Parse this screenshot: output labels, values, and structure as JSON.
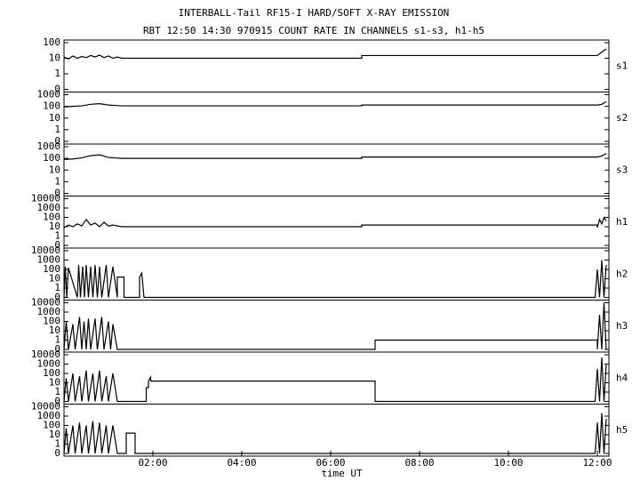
{
  "title": "INTERBALL-Tail RF15-I HARD/SOFT X-RAY EMISSION",
  "subtitle": "RBT 12:50 14:30 970915  COUNT RATE IN CHANNELS s1-s3, h1-h5",
  "chart_data": [
    {
      "type": "line",
      "ylabel": "s1",
      "yscale": "log",
      "color": "#000000",
      "xlim": [
        0,
        12.26
      ],
      "ylim": [
        0,
        100
      ],
      "yticks": [
        100,
        10,
        1,
        0
      ],
      "x": [
        0,
        0.1,
        0.2,
        0.3,
        0.4,
        0.5,
        0.6,
        0.7,
        0.8,
        0.9,
        1.0,
        1.1,
        1.2,
        1.3,
        6.7,
        6.7,
        12.0,
        12.1,
        12.2
      ],
      "values": [
        12,
        9,
        14,
        10,
        13,
        11,
        15,
        12,
        16,
        11,
        14,
        10,
        12,
        10,
        10,
        15,
        15,
        25,
        40
      ]
    },
    {
      "type": "line",
      "ylabel": "s2",
      "yscale": "log",
      "color": "#000000",
      "xlim": [
        0,
        12.26
      ],
      "ylim": [
        0,
        1000
      ],
      "yticks": [
        1000,
        100,
        10,
        1,
        0
      ],
      "x": [
        0,
        0.2,
        0.4,
        0.6,
        0.8,
        1.0,
        1.3,
        6.7,
        6.7,
        12.0,
        12.1,
        12.2
      ],
      "values": [
        90,
        100,
        110,
        150,
        170,
        130,
        110,
        110,
        130,
        130,
        150,
        250
      ]
    },
    {
      "type": "line",
      "ylabel": "s3",
      "yscale": "log",
      "color": "#000000",
      "xlim": [
        0,
        12.26
      ],
      "ylim": [
        0,
        1000
      ],
      "yticks": [
        1000,
        100,
        10,
        1,
        0
      ],
      "x": [
        0,
        0.2,
        0.4,
        0.6,
        0.8,
        1.0,
        1.3,
        6.7,
        6.7,
        12.0,
        12.1,
        12.2
      ],
      "values": [
        80,
        90,
        110,
        170,
        200,
        120,
        100,
        100,
        130,
        130,
        160,
        260
      ]
    },
    {
      "type": "line",
      "ylabel": "h1",
      "yscale": "log",
      "color": "#000000",
      "xlim": [
        0,
        12.26
      ],
      "ylim": [
        0,
        10000
      ],
      "yticks": [
        10000,
        1000,
        100,
        10,
        1,
        0
      ],
      "x": [
        0,
        0.1,
        0.2,
        0.3,
        0.4,
        0.5,
        0.6,
        0.7,
        0.8,
        0.9,
        1.0,
        1.1,
        1.3,
        6.7,
        6.7,
        12.0,
        12.0,
        12.05,
        12.1,
        12.15,
        12.2
      ],
      "values": [
        8,
        15,
        10,
        20,
        12,
        60,
        15,
        25,
        10,
        30,
        12,
        15,
        10,
        10,
        15,
        15,
        8,
        60,
        20,
        100,
        40
      ]
    },
    {
      "type": "line",
      "ylabel": "h2",
      "yscale": "log",
      "color": "#000000",
      "xlim": [
        0,
        12.26
      ],
      "ylim": [
        0,
        10000
      ],
      "yticks": [
        10000,
        1000,
        100,
        10,
        1,
        0
      ],
      "x": [
        0,
        0.03,
        0.06,
        0.1,
        0.3,
        0.33,
        0.37,
        0.42,
        0.46,
        0.5,
        0.55,
        0.6,
        0.65,
        0.7,
        0.75,
        0.8,
        0.85,
        0.95,
        1.0,
        1.1,
        1.2,
        1.2,
        1.35,
        1.35,
        1.7,
        1.7,
        1.75,
        1.8,
        11.95,
        12.0,
        12.05,
        12.1,
        12.15,
        12.2
      ],
      "values": [
        0,
        200,
        0,
        150,
        0,
        300,
        0,
        200,
        0,
        300,
        0,
        200,
        0,
        300,
        0,
        200,
        0,
        300,
        0,
        200,
        0,
        15,
        15,
        0,
        0,
        15,
        40,
        0,
        0,
        100,
        0,
        1000,
        0,
        300
      ]
    },
    {
      "type": "line",
      "ylabel": "h3",
      "yscale": "log",
      "color": "#000000",
      "xlim": [
        0,
        12.26
      ],
      "ylim": [
        0,
        10000
      ],
      "yticks": [
        10000,
        1000,
        100,
        10,
        1,
        0
      ],
      "x": [
        0,
        0.05,
        0.1,
        0.2,
        0.25,
        0.35,
        0.4,
        0.45,
        0.5,
        0.55,
        0.6,
        0.7,
        0.75,
        0.85,
        0.9,
        1.0,
        1.05,
        1.1,
        1.2,
        7.0,
        7.0,
        12.0,
        12.0,
        12.05,
        12.1,
        12.15,
        12.2
      ],
      "values": [
        0,
        100,
        0,
        50,
        0,
        300,
        0,
        100,
        0,
        200,
        0,
        200,
        0,
        300,
        0,
        100,
        0,
        50,
        0,
        0,
        1,
        1,
        0,
        500,
        0,
        10000,
        0
      ]
    },
    {
      "type": "line",
      "ylabel": "h4",
      "yscale": "log",
      "color": "#000000",
      "xlim": [
        0,
        12.26
      ],
      "ylim": [
        0,
        10000
      ],
      "yticks": [
        10000,
        1000,
        100,
        10,
        1,
        0
      ],
      "x": [
        0,
        0.05,
        0.1,
        0.2,
        0.25,
        0.35,
        0.4,
        0.5,
        0.55,
        0.65,
        0.7,
        0.8,
        0.85,
        0.95,
        1.0,
        1.1,
        1.2,
        1.85,
        1.85,
        1.9,
        1.9,
        1.95,
        1.95,
        7.0,
        7.0,
        11.95,
        12.0,
        12.05,
        12.1,
        12.15,
        12.2
      ],
      "values": [
        0,
        30,
        0,
        100,
        0,
        50,
        0,
        200,
        0,
        100,
        0,
        200,
        0,
        50,
        0,
        100,
        0,
        0,
        3,
        3,
        15,
        40,
        15,
        15,
        0,
        0,
        300,
        0,
        5000,
        0,
        1000
      ]
    },
    {
      "type": "line",
      "ylabel": "h5",
      "yscale": "log",
      "color": "#000000",
      "xlim": [
        0,
        12.26
      ],
      "ylim": [
        0,
        10000
      ],
      "yticks": [
        10000,
        1000,
        100,
        10,
        1,
        0
      ],
      "xticks": [
        {
          "value": 2,
          "label": "02:00"
        },
        {
          "value": 4,
          "label": "04:00"
        },
        {
          "value": 6,
          "label": "06:00"
        },
        {
          "value": 8,
          "label": "08:00"
        },
        {
          "value": 10,
          "label": "10:00"
        },
        {
          "value": 12,
          "label": "12:00"
        }
      ],
      "xlabel": "time UT",
      "x": [
        0,
        0.05,
        0.1,
        0.2,
        0.25,
        0.35,
        0.4,
        0.5,
        0.55,
        0.65,
        0.7,
        0.8,
        0.85,
        0.95,
        1.0,
        1.1,
        1.2,
        1.4,
        1.4,
        1.6,
        1.6,
        11.95,
        12.0,
        12.05,
        12.1,
        12.15,
        12.2
      ],
      "values": [
        0,
        50,
        0,
        100,
        0,
        200,
        0,
        100,
        0,
        300,
        0,
        200,
        0,
        100,
        0,
        100,
        0,
        0,
        15,
        15,
        0,
        0,
        200,
        0,
        2000,
        0,
        500
      ]
    }
  ]
}
